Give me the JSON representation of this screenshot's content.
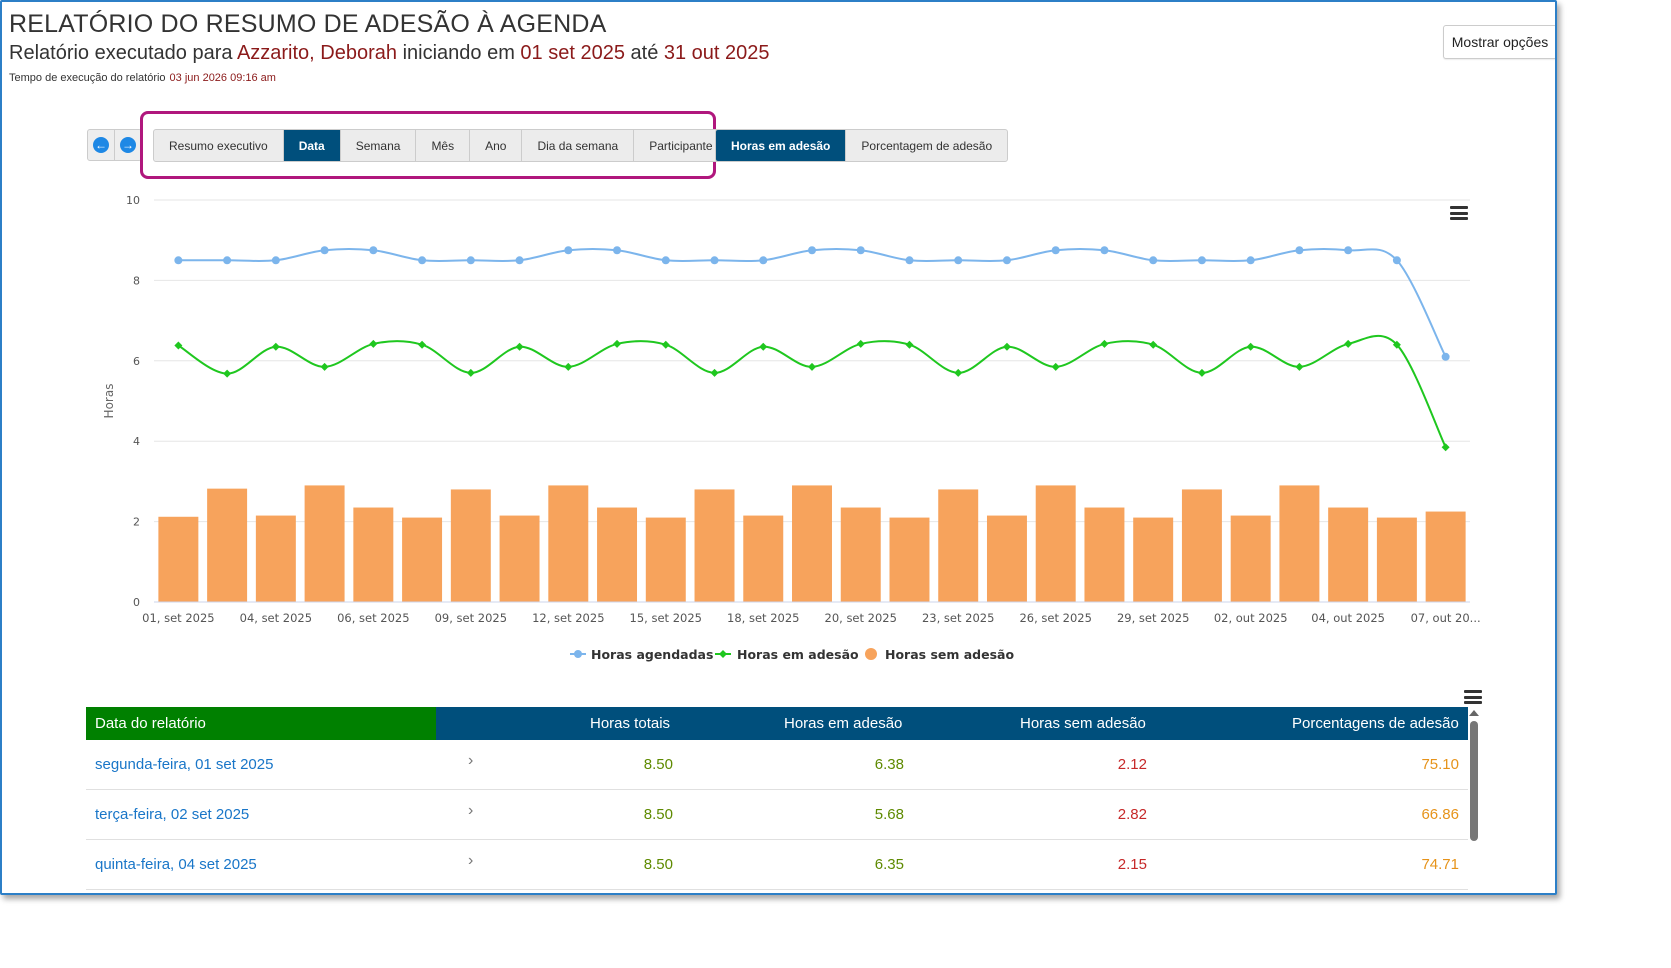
{
  "header": {
    "title": "RELATÓRIO DO RESUMO DE ADESÃO À AGENDA",
    "sub_prefix": "Relatório executado para ",
    "sub_name": "Azzarito, Deborah",
    "sub_mid1": " iniciando em ",
    "sub_start": "01 set 2025",
    "sub_mid2": " até ",
    "sub_end": "31 out 2025",
    "time_label": "Tempo de execução do relatório",
    "time_value": "03 jun 2026 09:16 am",
    "options_button": "Mostrar opções"
  },
  "nav": {
    "prev_icon": "arrow-left-circle-icon",
    "next_icon": "arrow-right-circle-icon",
    "view_tabs": [
      "Resumo executivo",
      "Data",
      "Semana",
      "Mês",
      "Ano",
      "Dia da semana",
      "Participante"
    ],
    "view_active": "Data",
    "metric_tabs": [
      "Horas em adesão",
      "Porcentagem de adesão"
    ],
    "metric_active": "Horas em adesão"
  },
  "chart_data": {
    "type": "line",
    "ylabel": "Horas",
    "ylim": [
      0,
      10
    ],
    "yticks": [
      0,
      2,
      4,
      6,
      8,
      10
    ],
    "x_tick_labels": [
      "01, set 2025",
      "04, set 2025",
      "06, set 2025",
      "09, set 2025",
      "12, set 2025",
      "15, set 2025",
      "18, set 2025",
      "20, set 2025",
      "23, set 2025",
      "26, set 2025",
      "29, set 2025",
      "02, out 2025",
      "04, out 2025",
      "07, out 20..."
    ],
    "series": [
      {
        "name": "Horas agendadas",
        "kind": "line",
        "color": "#7cb5ec",
        "values": [
          8.5,
          8.5,
          8.5,
          8.75,
          8.75,
          8.5,
          8.5,
          8.5,
          8.75,
          8.75,
          8.5,
          8.5,
          8.5,
          8.75,
          8.75,
          8.5,
          8.5,
          8.5,
          8.75,
          8.75,
          8.5,
          8.5,
          8.5,
          8.75,
          8.75,
          8.5,
          6.1
        ]
      },
      {
        "name": "Horas em adesão",
        "kind": "line",
        "color": "#1fc71f",
        "values": [
          6.38,
          5.68,
          6.35,
          5.85,
          6.42,
          6.4,
          5.7,
          6.35,
          5.85,
          6.42,
          6.4,
          5.7,
          6.35,
          5.85,
          6.42,
          6.4,
          5.7,
          6.35,
          5.85,
          6.42,
          6.4,
          5.7,
          6.35,
          5.85,
          6.42,
          6.4,
          3.85
        ]
      },
      {
        "name": "Horas sem adesão",
        "kind": "bar",
        "color": "#f7a35c",
        "values": [
          2.12,
          2.82,
          2.15,
          2.9,
          2.35,
          2.1,
          2.8,
          2.15,
          2.9,
          2.35,
          2.1,
          2.8,
          2.15,
          2.9,
          2.35,
          2.1,
          2.8,
          2.15,
          2.9,
          2.35,
          2.1,
          2.8,
          2.15,
          2.9,
          2.35,
          2.1,
          2.25
        ]
      }
    ],
    "grid": true,
    "legend_position": "bottom-center"
  },
  "table": {
    "headers": [
      "Data do relatório",
      "Horas totais",
      "Horas em adesão",
      "Horas sem adesão",
      "Porcentagens de adesão"
    ],
    "rows": [
      {
        "date": "segunda-feira, 01 set 2025",
        "total": "8.50",
        "adhered": "6.38",
        "not_adhered": "2.12",
        "pct": "75.10"
      },
      {
        "date": "terça-feira, 02 set 2025",
        "total": "8.50",
        "adhered": "5.68",
        "not_adhered": "2.82",
        "pct": "66.86"
      },
      {
        "date": "quinta-feira, 04 set 2025",
        "total": "8.50",
        "adhered": "6.35",
        "not_adhered": "2.15",
        "pct": "74.71"
      }
    ]
  },
  "colors": {
    "accent": "#004f7c",
    "table_first_header": "#008000",
    "highlight_border": "#b0177d",
    "red_text": "#8b1a1a"
  }
}
